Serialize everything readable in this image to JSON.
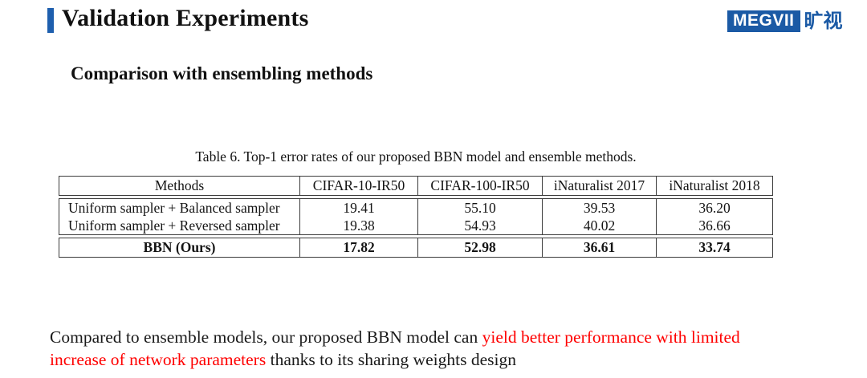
{
  "slide": {
    "title": "Validation Experiments",
    "subtitle": "Comparison with ensembling methods"
  },
  "logo": {
    "wordmark": "MEGVII",
    "cn_name": "旷视",
    "brand_color": "#1b5aa5"
  },
  "accent": {
    "title_bar_color": "#1e5fae",
    "highlight_red": "#ff0000"
  },
  "table": {
    "caption": "Table 6. Top-1 error rates of our proposed BBN model and ensemble methods.",
    "columns": [
      "Methods",
      "CIFAR-10-IR50",
      "CIFAR-100-IR50",
      "iNaturalist 2017",
      "iNaturalist 2018"
    ],
    "rows": [
      {
        "method": "Uniform sampler + Balanced sampler",
        "values": [
          "19.41",
          "55.10",
          "39.53",
          "36.20"
        ]
      },
      {
        "method": "Uniform sampler + Reversed sampler",
        "values": [
          "19.38",
          "54.93",
          "40.02",
          "36.66"
        ]
      },
      {
        "method": "BBN (Ours)",
        "values": [
          "17.82",
          "52.98",
          "36.61",
          "33.74"
        ]
      }
    ]
  },
  "chart_data": {
    "type": "table",
    "title": "Table 6. Top-1 error rates of our proposed BBN model and ensemble methods.",
    "categories": [
      "CIFAR-10-IR50",
      "CIFAR-100-IR50",
      "iNaturalist 2017",
      "iNaturalist 2018"
    ],
    "series": [
      {
        "name": "Uniform sampler + Balanced sampler",
        "values": [
          19.41,
          55.1,
          39.53,
          36.2
        ]
      },
      {
        "name": "Uniform sampler + Reversed sampler",
        "values": [
          19.38,
          54.93,
          40.02,
          36.66
        ]
      },
      {
        "name": "BBN (Ours)",
        "values": [
          17.82,
          52.98,
          36.61,
          33.74
        ]
      }
    ]
  },
  "footer": {
    "segments": [
      {
        "text": "Compared to ensemble models, our proposed BBN model can "
      },
      {
        "text": "yield better performance with limited increase of network parameters"
      },
      {
        "text": " thanks to its sharing weights design"
      }
    ]
  }
}
